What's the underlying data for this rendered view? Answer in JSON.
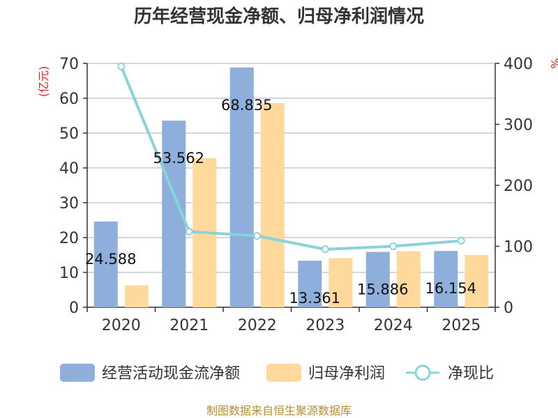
{
  "chart_data": {
    "type": "bar",
    "title": "历年经营现金净额、归母净利润情况",
    "categories": [
      "2020",
      "2021",
      "2022",
      "2023",
      "2024",
      "2025"
    ],
    "series": [
      {
        "name": "经营活动现金流净额",
        "axis": "left",
        "type": "bar",
        "color": "#8eaedb",
        "values": [
          24.588,
          53.562,
          68.835,
          13.361,
          15.886,
          16.154
        ],
        "labels": [
          "24.588",
          "53.562",
          "68.835",
          "13.361",
          "15.886",
          "16.154"
        ]
      },
      {
        "name": "归母净利润",
        "axis": "left",
        "type": "bar",
        "color": "#fed99b",
        "values": [
          6.3,
          42.8,
          58.6,
          14.1,
          16.1,
          15.0
        ]
      },
      {
        "name": "净现比",
        "axis": "right",
        "type": "line",
        "color": "#8ad3d8",
        "values": [
          395,
          124,
          117,
          95,
          100,
          109
        ]
      }
    ],
    "left_axis": {
      "unit": "(亿元)",
      "min": 0,
      "max": 70,
      "ticks": [
        0,
        10,
        20,
        30,
        40,
        50,
        60,
        70
      ]
    },
    "right_axis": {
      "unit": "%",
      "min": 0,
      "max": 400,
      "ticks": [
        0,
        100,
        200,
        300,
        400
      ]
    },
    "legend": [
      "经营活动现金流净额",
      "归母净利润",
      "净现比"
    ],
    "legend_position": "bottom",
    "grid": true,
    "source": "制图数据来自恒生聚源数据库"
  }
}
